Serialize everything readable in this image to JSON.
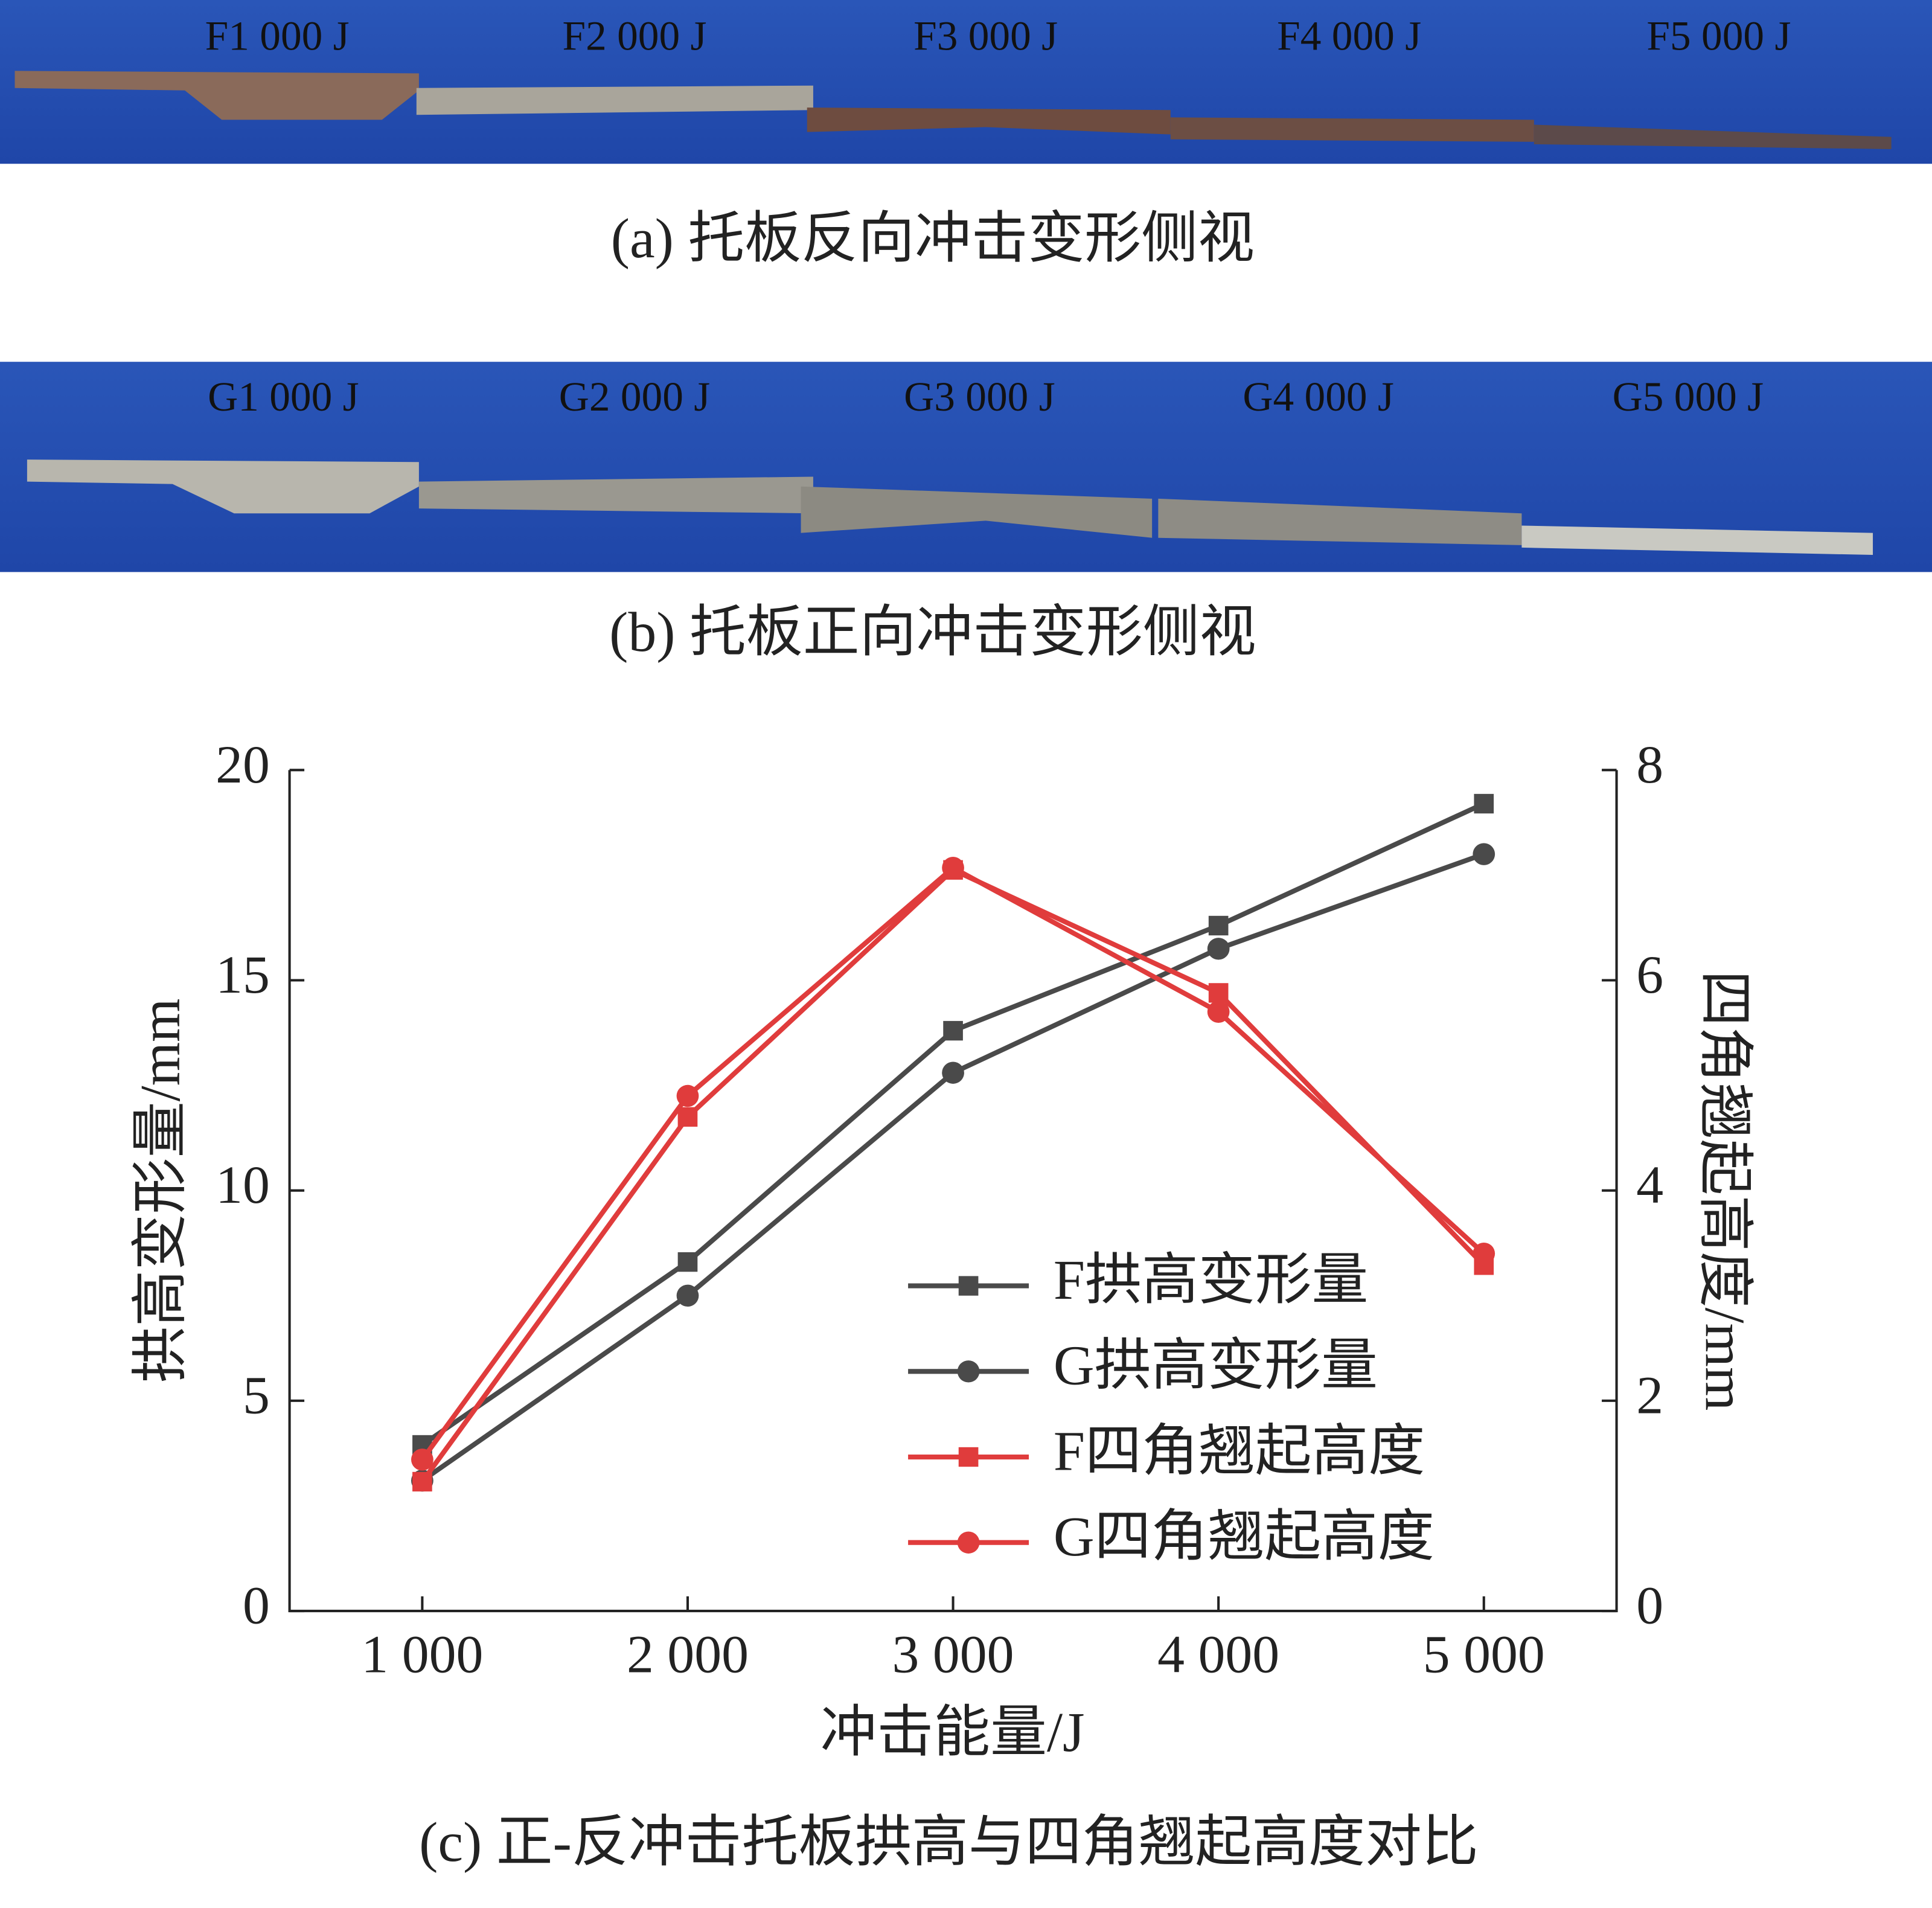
{
  "photos": [
    {
      "labels": [
        "F1 000 J",
        "F2 000 J",
        "F3 000 J",
        "F4 000 J",
        "F5 000 J"
      ],
      "caption": "(a)  托板反向冲击变形侧视"
    },
    {
      "labels": [
        "G1 000 J",
        "G2 000 J",
        "G3 000 J",
        "G4 000 J",
        "G5 000 J"
      ],
      "caption": "(b)  托板正向冲击变形侧视"
    }
  ],
  "chart_data": {
    "type": "line",
    "caption": "(c)  正-反冲击托板拱高与四角翘起高度对比",
    "x_label": "冲击能量/J",
    "y_label": "拱高变形量/mm",
    "y2_label": "四角翘起高度/mm",
    "x": [
      1000,
      2000,
      3000,
      4000,
      5000
    ],
    "xlim": [
      500,
      5500
    ],
    "xticks": [
      {
        "value": 1000,
        "label": "1 000"
      },
      {
        "value": 2000,
        "label": "2 000"
      },
      {
        "value": 3000,
        "label": "3 000"
      },
      {
        "value": 4000,
        "label": "4 000"
      },
      {
        "value": 5000,
        "label": "5 000"
      }
    ],
    "ylim": [
      0,
      20
    ],
    "yticks": [
      0,
      5,
      10,
      15,
      20
    ],
    "y2lim": [
      0,
      8
    ],
    "y2ticks": [
      0,
      2,
      4,
      6,
      8
    ],
    "series": [
      {
        "name": "F拱高变形量",
        "color": "#4a4a4a",
        "marker": "square",
        "values": [
          3.95,
          8.3,
          13.8,
          16.3,
          19.2
        ]
      },
      {
        "name": "G拱高变形量",
        "color": "#4a4a4a",
        "marker": "circle",
        "values": [
          3.1,
          7.5,
          12.8,
          15.75,
          18.0
        ]
      },
      {
        "name": "F四角翘起高度",
        "color": "#e03c3c",
        "marker": "square",
        "axis": "y2",
        "values": [
          1.23,
          4.7,
          7.05,
          5.88,
          3.29
        ]
      },
      {
        "name": "G四角翘起高度",
        "color": "#e03c3c",
        "marker": "circle",
        "axis": "y2",
        "values": [
          1.44,
          4.9,
          7.07,
          5.7,
          3.4
        ]
      }
    ]
  }
}
